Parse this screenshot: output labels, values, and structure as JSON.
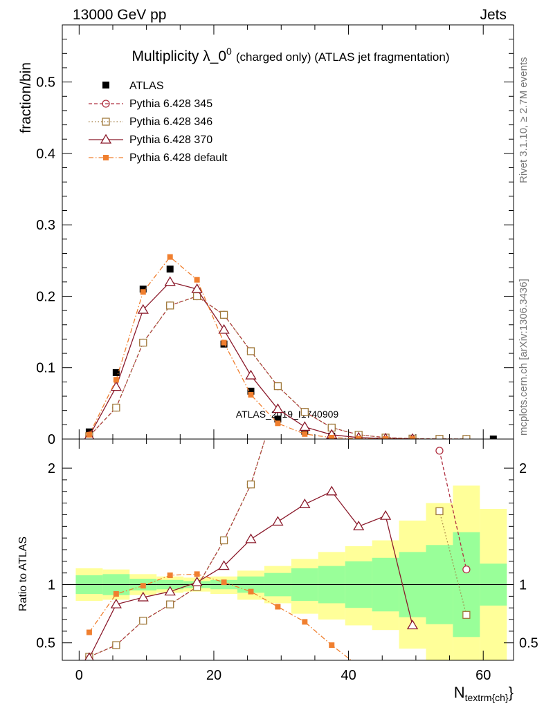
{
  "header": {
    "left": "13000 GeV pp",
    "right": "Jets"
  },
  "side_notes": {
    "top": "Rivet 3.1.10, ≥ 2.7M events",
    "bottom": "mcplots.cern.ch [arXiv:1306.3436]"
  },
  "watermark": "ATLAS_2019_I1740909",
  "colors": {
    "atlas": "#000000",
    "p345": "#b03040",
    "p346": "#a07a3c",
    "p370": "#8b1a2b",
    "pdef": "#f07f2f",
    "band_yellow": "#ffff99",
    "band_green": "#99ff99"
  },
  "chart_data": [
    {
      "type": "line",
      "title": "Multiplicity λ_0",
      "title_sup": "0",
      "subtitle": "(charged only) (ATLAS jet fragmentation)",
      "xlabel_main": "N",
      "xlabel_sub": "textrm{ch}",
      "xlabel_close": "}",
      "ylabel": "fraction/bin",
      "xlim": [
        -2.5,
        64.5
      ],
      "ylim": [
        0,
        0.58
      ],
      "yticks": [
        0,
        0.1,
        0.2,
        0.3,
        0.4,
        0.5
      ],
      "ytick_labels": [
        "0",
        "0.1",
        "0.2",
        "0.3",
        "0.4",
        "0.5"
      ],
      "legend_position": "top-left",
      "x": [
        1.5,
        5.5,
        9.5,
        13.5,
        17.5,
        21.5,
        25.5,
        29.5,
        33.5,
        37.5,
        41.5,
        45.5,
        49.5,
        53.5,
        57.5,
        61.5
      ],
      "series": [
        {
          "name": "ATLAS",
          "values": [
            0.01,
            0.093,
            0.21,
            0.238,
            0.207,
            0.133,
            0.067,
            0.028,
            0.011,
            0.004,
            0.002,
            0.0009,
            0.0004,
            0.0002,
            0.0001,
            0.0001
          ]
        },
        {
          "name": "Pythia 6.428 345",
          "values": [
            0.004,
            0.044,
            0.135,
            0.187,
            0.2,
            0.174,
            0.123,
            0.074,
            0.038,
            0.016,
            0.006,
            0.002,
            0.0006,
            0.0002,
            0.0001,
            null
          ]
        },
        {
          "name": "Pythia 6.428 346",
          "values": [
            0.004,
            0.044,
            0.135,
            0.187,
            0.2,
            0.174,
            0.123,
            0.074,
            0.038,
            0.016,
            0.006,
            0.002,
            0.0006,
            0.0002,
            0.0001,
            null
          ]
        },
        {
          "name": "Pythia 6.428 370",
          "values": [
            0.004,
            0.073,
            0.181,
            0.22,
            0.21,
            0.153,
            0.089,
            0.042,
            0.017,
            0.006,
            0.002,
            0.0008,
            0.0002,
            null,
            null,
            null
          ]
        },
        {
          "name": "Pythia 6.428 default",
          "values": [
            0.006,
            0.083,
            0.206,
            0.255,
            0.223,
            0.135,
            0.062,
            0.022,
            0.007,
            0.002,
            0.0006,
            0.0002,
            0.0001,
            null,
            null,
            null
          ]
        }
      ]
    },
    {
      "type": "line",
      "ylabel": "Ratio to ATLAS",
      "xlim": [
        -2.5,
        64.5
      ],
      "ylim": [
        0.35,
        2.25
      ],
      "yticks": [
        0.5,
        1,
        2
      ],
      "ytick_labels": [
        "0.5",
        "1",
        "2"
      ],
      "xticks": [
        0,
        20,
        40,
        60
      ],
      "xtick_labels": [
        "0",
        "20",
        "40",
        "60"
      ],
      "x": [
        1.5,
        5.5,
        9.5,
        13.5,
        17.5,
        21.5,
        25.5,
        29.5,
        33.5,
        37.5,
        41.5,
        45.5,
        49.5,
        53.5,
        57.5,
        61.5
      ],
      "band_yellow": [
        [
          0.86,
          1.14
        ],
        [
          0.87,
          1.13
        ],
        [
          0.91,
          1.09
        ],
        [
          0.93,
          1.07
        ],
        [
          0.94,
          1.06
        ],
        [
          0.92,
          1.07
        ],
        [
          0.87,
          1.12
        ],
        [
          0.84,
          1.16
        ],
        [
          0.75,
          1.22
        ],
        [
          0.7,
          1.28
        ],
        [
          0.65,
          1.33
        ],
        [
          0.61,
          1.38
        ],
        [
          0.45,
          1.55
        ],
        [
          0.3,
          1.7
        ],
        [
          0.15,
          1.85
        ],
        [
          0.35,
          1.65
        ]
      ],
      "band_green": [
        [
          0.92,
          1.08
        ],
        [
          0.91,
          1.09
        ],
        [
          0.95,
          1.05
        ],
        [
          0.96,
          1.04
        ],
        [
          0.97,
          1.03
        ],
        [
          0.96,
          1.04
        ],
        [
          0.93,
          1.07
        ],
        [
          0.9,
          1.1
        ],
        [
          0.86,
          1.14
        ],
        [
          0.84,
          1.16
        ],
        [
          0.8,
          1.2
        ],
        [
          0.77,
          1.23
        ],
        [
          0.72,
          1.28
        ],
        [
          0.66,
          1.34
        ],
        [
          0.55,
          1.45
        ],
        [
          0.82,
          1.18
        ]
      ],
      "series": [
        {
          "name": "Pythia 6.428 345",
          "values": [
            0.38,
            0.48,
            0.69,
            0.83,
            0.98,
            1.38,
            1.86,
            2.6,
            null,
            null,
            null,
            null,
            null,
            2.15,
            1.13,
            null
          ]
        },
        {
          "name": "Pythia 6.428 346",
          "values": [
            0.38,
            0.48,
            0.69,
            0.83,
            0.98,
            1.38,
            1.86,
            2.6,
            null,
            null,
            null,
            null,
            null,
            1.63,
            0.74,
            null
          ]
        },
        {
          "name": "Pythia 6.428 370",
          "values": [
            0.37,
            0.83,
            0.89,
            0.94,
            1.02,
            1.16,
            1.39,
            1.54,
            1.69,
            1.8,
            1.5,
            1.59,
            0.65,
            null,
            null,
            null
          ]
        },
        {
          "name": "Pythia 6.428 default",
          "values": [
            0.59,
            0.92,
            0.99,
            1.08,
            1.09,
            1.02,
            0.94,
            0.81,
            0.68,
            0.48,
            0.3,
            null,
            null,
            null,
            null,
            null
          ]
        }
      ]
    }
  ]
}
